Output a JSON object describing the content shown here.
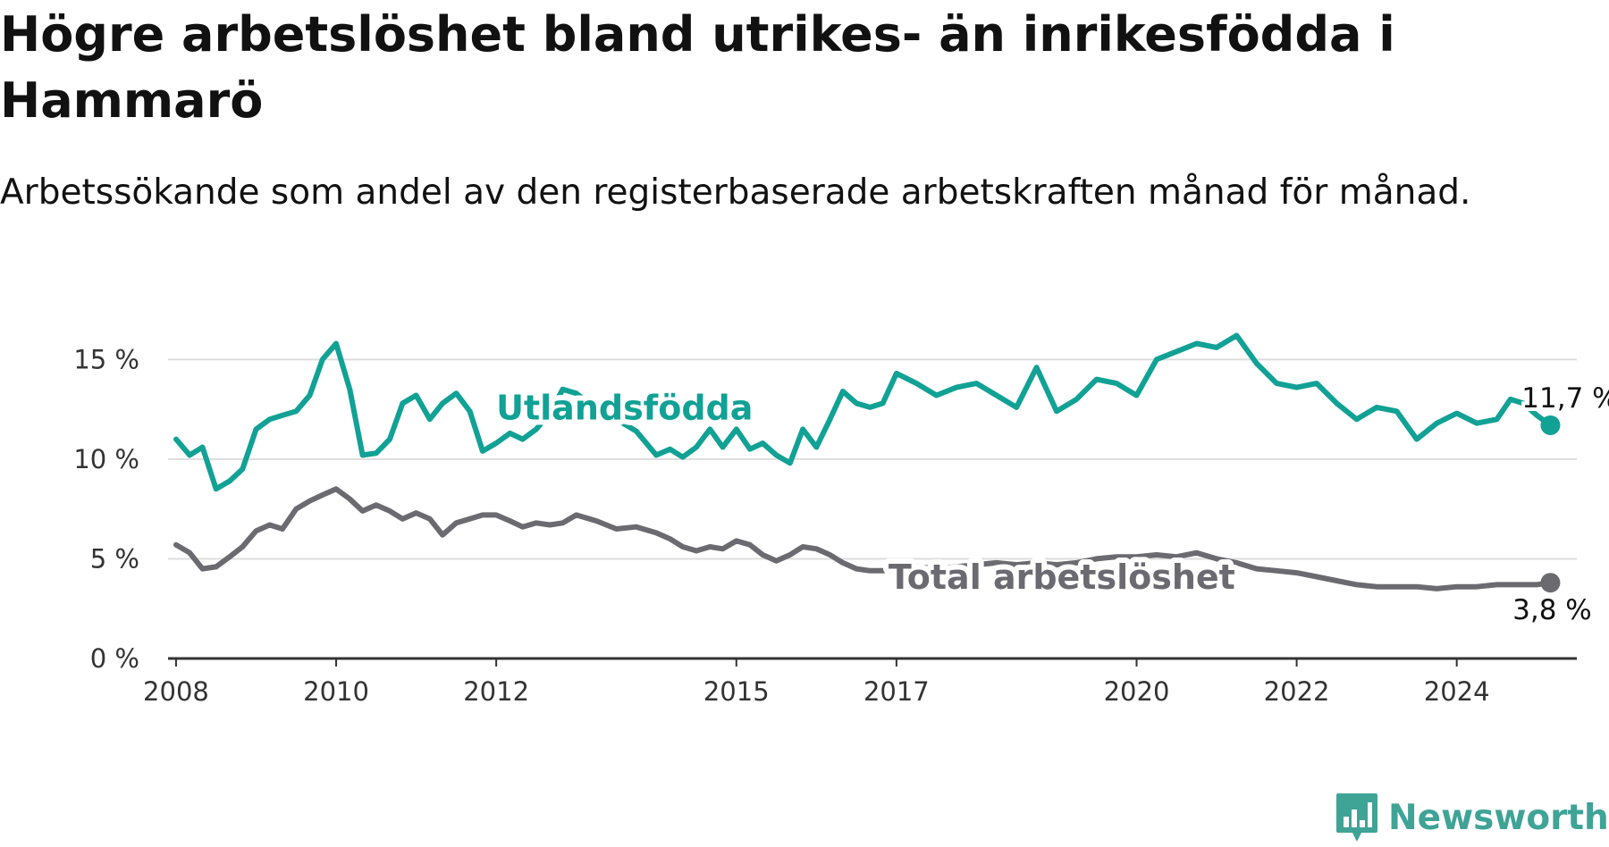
{
  "title": "Högre arbetslöshet bland utrikes- än inrikesfödda i Hammarö",
  "subtitle": "Arbetssökande som andel av den registerbaserade arbetskraften månad för månad.",
  "brand": "Newsworthy",
  "colors": {
    "utlandsfodda": "#11a195",
    "total": "#6b6a70",
    "grid": "#dddddd",
    "axis": "#333333"
  },
  "chart_data": {
    "type": "line",
    "title": "Högre arbetslöshet bland utrikes- än inrikesfödda i Hammarö",
    "subtitle": "Arbetssökande som andel av den registerbaserade arbetskraften månad för månad.",
    "xlabel": "",
    "ylabel": "",
    "xlim": [
      2007.9,
      2025.5
    ],
    "ylim": [
      0,
      16
    ],
    "x_ticks": [
      2008,
      2010,
      2012,
      2015,
      2017,
      2020,
      2022,
      2024
    ],
    "x_tick_labels": [
      "2008",
      "2010",
      "2012",
      "2015",
      "2017",
      "2020",
      "2022",
      "2024"
    ],
    "y_ticks": [
      0,
      5,
      10,
      15
    ],
    "y_tick_labels": [
      "0 %",
      "5 %",
      "10 %",
      "15 %"
    ],
    "grid": true,
    "legend": "inline labels",
    "series": [
      {
        "name": "Utlandsfödda",
        "end_label": "11,7 %",
        "x": [
          2008.0,
          2008.17,
          2008.33,
          2008.5,
          2008.67,
          2008.83,
          2009.0,
          2009.17,
          2009.33,
          2009.5,
          2009.67,
          2009.83,
          2010.0,
          2010.17,
          2010.33,
          2010.5,
          2010.67,
          2010.83,
          2011.0,
          2011.17,
          2011.33,
          2011.5,
          2011.67,
          2011.83,
          2012.0,
          2012.17,
          2012.33,
          2012.5,
          2012.67,
          2012.83,
          2013.0,
          2013.25,
          2013.5,
          2013.75,
          2014.0,
          2014.17,
          2014.33,
          2014.5,
          2014.67,
          2014.83,
          2015.0,
          2015.17,
          2015.33,
          2015.5,
          2015.67,
          2015.83,
          2016.0,
          2016.17,
          2016.33,
          2016.5,
          2016.67,
          2016.83,
          2017.0,
          2017.25,
          2017.5,
          2017.75,
          2018.0,
          2018.25,
          2018.5,
          2018.75,
          2019.0,
          2019.25,
          2019.5,
          2019.75,
          2020.0,
          2020.25,
          2020.5,
          2020.75,
          2021.0,
          2021.25,
          2021.5,
          2021.75,
          2022.0,
          2022.25,
          2022.5,
          2022.75,
          2023.0,
          2023.25,
          2023.5,
          2023.75,
          2024.0,
          2024.25,
          2024.5,
          2024.67,
          2024.83,
          2025.0,
          2025.17
        ],
        "y": [
          11.0,
          10.2,
          10.6,
          8.5,
          8.9,
          9.5,
          11.5,
          12.0,
          12.2,
          12.4,
          13.2,
          15.0,
          15.8,
          13.5,
          10.2,
          10.3,
          11.0,
          12.8,
          13.2,
          12.0,
          12.8,
          13.3,
          12.4,
          10.4,
          10.8,
          11.3,
          11.0,
          11.5,
          12.3,
          13.5,
          13.3,
          12.5,
          12.0,
          11.4,
          10.2,
          10.5,
          10.1,
          10.6,
          11.5,
          10.6,
          11.5,
          10.5,
          10.8,
          10.2,
          9.8,
          11.5,
          10.6,
          12.0,
          13.4,
          12.8,
          12.6,
          12.8,
          14.3,
          13.8,
          13.2,
          13.6,
          13.8,
          13.2,
          12.6,
          14.6,
          12.4,
          13.0,
          14.0,
          13.8,
          13.2,
          15.0,
          15.4,
          15.8,
          15.6,
          16.2,
          14.8,
          13.8,
          13.6,
          13.8,
          12.8,
          12.0,
          12.6,
          12.4,
          11.0,
          11.8,
          12.3,
          11.8,
          12.0,
          13.0,
          12.8,
          12.2,
          11.7
        ]
      },
      {
        "name": "Total arbetslöshet",
        "end_label": "3,8 %",
        "x": [
          2008.0,
          2008.17,
          2008.33,
          2008.5,
          2008.67,
          2008.83,
          2009.0,
          2009.17,
          2009.33,
          2009.5,
          2009.67,
          2009.83,
          2010.0,
          2010.17,
          2010.33,
          2010.5,
          2010.67,
          2010.83,
          2011.0,
          2011.17,
          2011.33,
          2011.5,
          2011.67,
          2011.83,
          2012.0,
          2012.17,
          2012.33,
          2012.5,
          2012.67,
          2012.83,
          2013.0,
          2013.25,
          2013.5,
          2013.75,
          2014.0,
          2014.17,
          2014.33,
          2014.5,
          2014.67,
          2014.83,
          2015.0,
          2015.17,
          2015.33,
          2015.5,
          2015.67,
          2015.83,
          2016.0,
          2016.17,
          2016.33,
          2016.5,
          2016.67,
          2016.83,
          2017.0,
          2017.25,
          2017.5,
          2017.75,
          2018.0,
          2018.25,
          2018.5,
          2018.75,
          2019.0,
          2019.25,
          2019.5,
          2019.75,
          2020.0,
          2020.25,
          2020.5,
          2020.75,
          2021.0,
          2021.25,
          2021.5,
          2021.75,
          2022.0,
          2022.25,
          2022.5,
          2022.75,
          2023.0,
          2023.25,
          2023.5,
          2023.75,
          2024.0,
          2024.25,
          2024.5,
          2024.67,
          2024.83,
          2025.0,
          2025.17
        ],
        "y": [
          5.7,
          5.3,
          4.5,
          4.6,
          5.1,
          5.6,
          6.4,
          6.7,
          6.5,
          7.5,
          7.9,
          8.2,
          8.5,
          8.0,
          7.4,
          7.7,
          7.4,
          7.0,
          7.3,
          7.0,
          6.2,
          6.8,
          7.0,
          7.2,
          7.2,
          6.9,
          6.6,
          6.8,
          6.7,
          6.8,
          7.2,
          6.9,
          6.5,
          6.6,
          6.3,
          6.0,
          5.6,
          5.4,
          5.6,
          5.5,
          5.9,
          5.7,
          5.2,
          4.9,
          5.2,
          5.6,
          5.5,
          5.2,
          4.8,
          4.5,
          4.4,
          4.4,
          4.5,
          4.6,
          4.5,
          4.6,
          4.7,
          4.8,
          4.7,
          4.8,
          4.7,
          4.8,
          5.0,
          5.1,
          5.1,
          5.2,
          5.1,
          5.3,
          5.0,
          4.8,
          4.5,
          4.4,
          4.3,
          4.1,
          3.9,
          3.7,
          3.6,
          3.6,
          3.6,
          3.5,
          3.6,
          3.6,
          3.7,
          3.7,
          3.7,
          3.7,
          3.8
        ]
      }
    ]
  }
}
